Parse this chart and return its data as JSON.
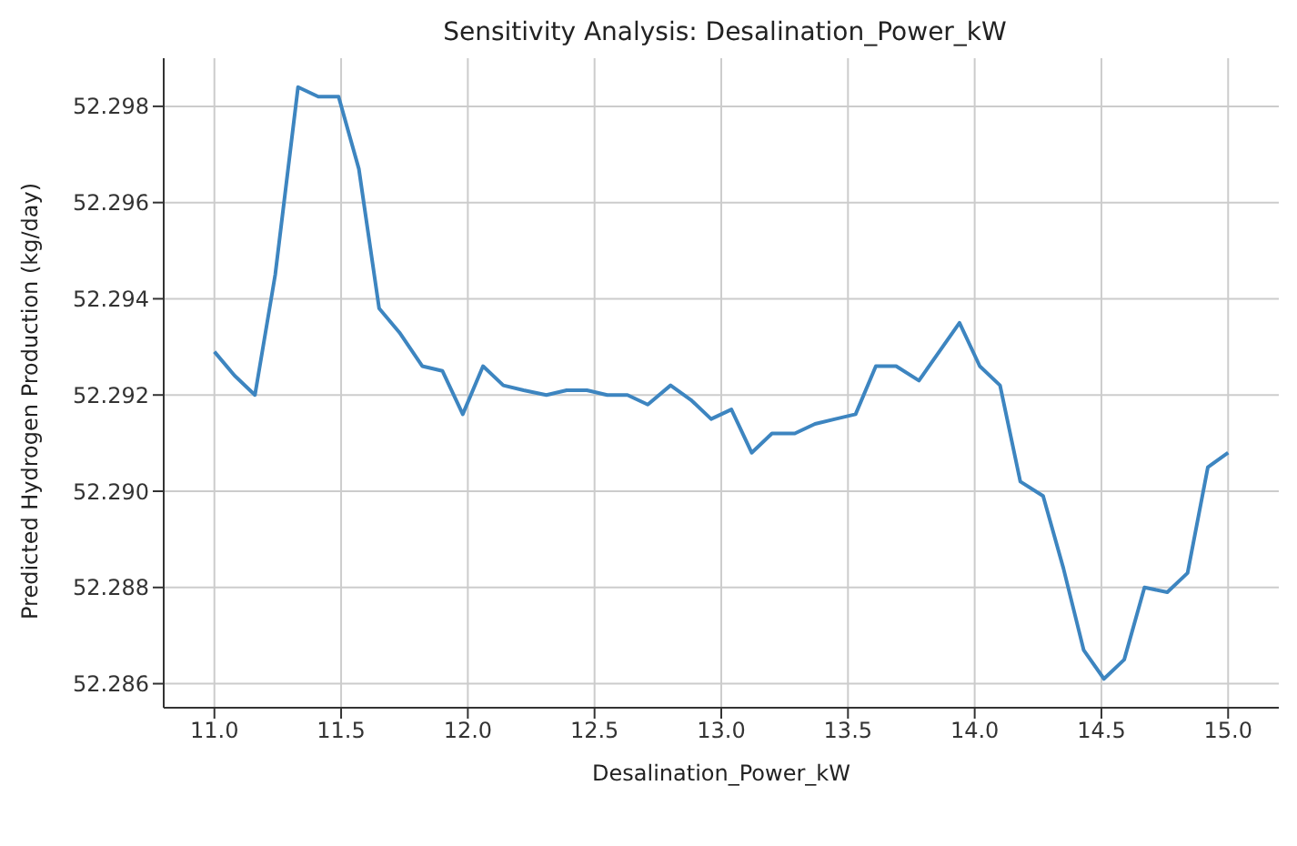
{
  "chart_data": {
    "type": "line",
    "title": "Sensitivity Analysis: Desalination_Power_kW",
    "xlabel": "Desalination_Power_kW",
    "ylabel": "Predicted Hydrogen Production (kg/day)",
    "x": [
      11.0,
      11.08,
      11.16,
      11.24,
      11.33,
      11.41,
      11.49,
      11.57,
      11.65,
      11.73,
      11.82,
      11.9,
      11.98,
      12.06,
      12.14,
      12.22,
      12.31,
      12.39,
      12.47,
      12.55,
      12.63,
      12.71,
      12.8,
      12.88,
      12.96,
      13.04,
      13.12,
      13.2,
      13.29,
      13.37,
      13.45,
      13.53,
      13.61,
      13.69,
      13.78,
      13.86,
      13.94,
      14.02,
      14.1,
      14.18,
      14.27,
      14.35,
      14.43,
      14.51,
      14.59,
      14.67,
      14.76,
      14.84,
      14.92,
      15.0
    ],
    "series": [
      {
        "color": "#3d85c0",
        "values": [
          52.2929,
          52.2924,
          52.292,
          52.2945,
          52.2984,
          52.2982,
          52.2982,
          52.2967,
          52.2938,
          52.2933,
          52.2926,
          52.2925,
          52.2916,
          52.2926,
          52.2922,
          52.2921,
          52.292,
          52.2921,
          52.2921,
          52.292,
          52.292,
          52.2918,
          52.2922,
          52.2919,
          52.2915,
          52.2917,
          52.2908,
          52.2912,
          52.2912,
          52.2914,
          52.2915,
          52.2916,
          52.2926,
          52.2926,
          52.2923,
          52.2929,
          52.2935,
          52.2926,
          52.2922,
          52.2902,
          52.2899,
          52.2884,
          52.2867,
          52.2861,
          52.2865,
          52.288,
          52.2879,
          52.2883,
          52.2905,
          52.2908
        ]
      }
    ],
    "xlim": [
      10.8,
      15.2
    ],
    "xticks": [
      {
        "value": 11,
        "label": "11.0"
      },
      {
        "value": 11.5,
        "label": "11.5"
      },
      {
        "value": 12,
        "label": "12.0"
      },
      {
        "value": 12.5,
        "label": "12.5"
      },
      {
        "value": 13,
        "label": "13.0"
      },
      {
        "value": 13.5,
        "label": "13.5"
      },
      {
        "value": 14,
        "label": "14.0"
      },
      {
        "value": 14.5,
        "label": "14.5"
      },
      {
        "value": 15,
        "label": "15.0"
      }
    ],
    "ylim": [
      52.2855,
      52.299
    ],
    "yticks": [
      {
        "value": 52.286,
        "label": "52.286"
      },
      {
        "value": 52.288,
        "label": "52.288"
      },
      {
        "value": 52.29,
        "label": "52.290"
      },
      {
        "value": 52.292,
        "label": "52.292"
      },
      {
        "value": 52.294,
        "label": "52.294"
      },
      {
        "value": 52.296,
        "label": "52.296"
      },
      {
        "value": 52.298,
        "label": "52.298"
      }
    ],
    "grid": true
  }
}
